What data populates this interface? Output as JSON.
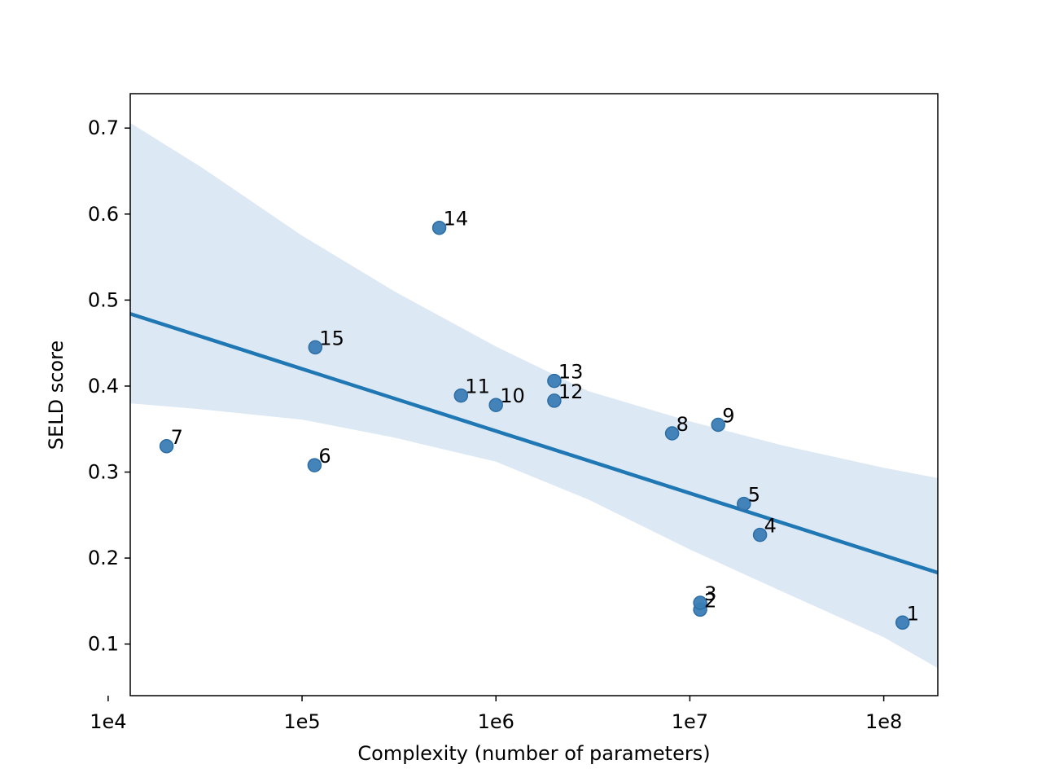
{
  "chart_data": {
    "type": "scatter",
    "xlabel": "Complexity (number of parameters)",
    "ylabel": "SELD score",
    "xscale": "log",
    "xlim": [
      13000,
      190000000
    ],
    "ylim": [
      0.04,
      0.74
    ],
    "grid": false,
    "x_tick_values": [
      10000,
      100000,
      1000000,
      10000000,
      100000000
    ],
    "x_tick_labels": [
      "1e4",
      "1e5",
      "1e6",
      "1e7",
      "1e8"
    ],
    "y_tick_values": [
      0.1,
      0.2,
      0.3,
      0.4,
      0.5,
      0.6,
      0.7
    ],
    "y_tick_labels": [
      "0.1",
      "0.2",
      "0.3",
      "0.4",
      "0.5",
      "0.6",
      "0.7"
    ],
    "point_color": "#3a7db5",
    "line_color": "#1f77b4",
    "band_color": "#dce8f3",
    "points": [
      {
        "label": "1",
        "x": 125000000,
        "y": 0.125
      },
      {
        "label": "2",
        "x": 11300000,
        "y": 0.14
      },
      {
        "label": "3",
        "x": 11300000,
        "y": 0.148
      },
      {
        "label": "4",
        "x": 23000000,
        "y": 0.227
      },
      {
        "label": "5",
        "x": 19000000,
        "y": 0.263
      },
      {
        "label": "6",
        "x": 116000,
        "y": 0.308
      },
      {
        "label": "7",
        "x": 20000,
        "y": 0.33
      },
      {
        "label": "8",
        "x": 8100000,
        "y": 0.345
      },
      {
        "label": "9",
        "x": 14000000,
        "y": 0.355
      },
      {
        "label": "10",
        "x": 1000000,
        "y": 0.378
      },
      {
        "label": "11",
        "x": 660000,
        "y": 0.389
      },
      {
        "label": "12",
        "x": 2000000,
        "y": 0.383
      },
      {
        "label": "13",
        "x": 2000000,
        "y": 0.406
      },
      {
        "label": "14",
        "x": 510000,
        "y": 0.584
      },
      {
        "label": "15",
        "x": 117000,
        "y": 0.445
      }
    ],
    "regression_line": [
      {
        "x": 13000,
        "y": 0.484
      },
      {
        "x": 190000000,
        "y": 0.183
      }
    ],
    "confidence_band": {
      "x": [
        13000,
        30000,
        100000,
        300000,
        1000000,
        3000000,
        10000000,
        30000000,
        100000000,
        190000000
      ],
      "upper": [
        0.706,
        0.655,
        0.575,
        0.51,
        0.446,
        0.394,
        0.359,
        0.331,
        0.305,
        0.293
      ],
      "lower": [
        0.38,
        0.373,
        0.361,
        0.34,
        0.312,
        0.268,
        0.21,
        0.161,
        0.108,
        0.072
      ]
    }
  }
}
